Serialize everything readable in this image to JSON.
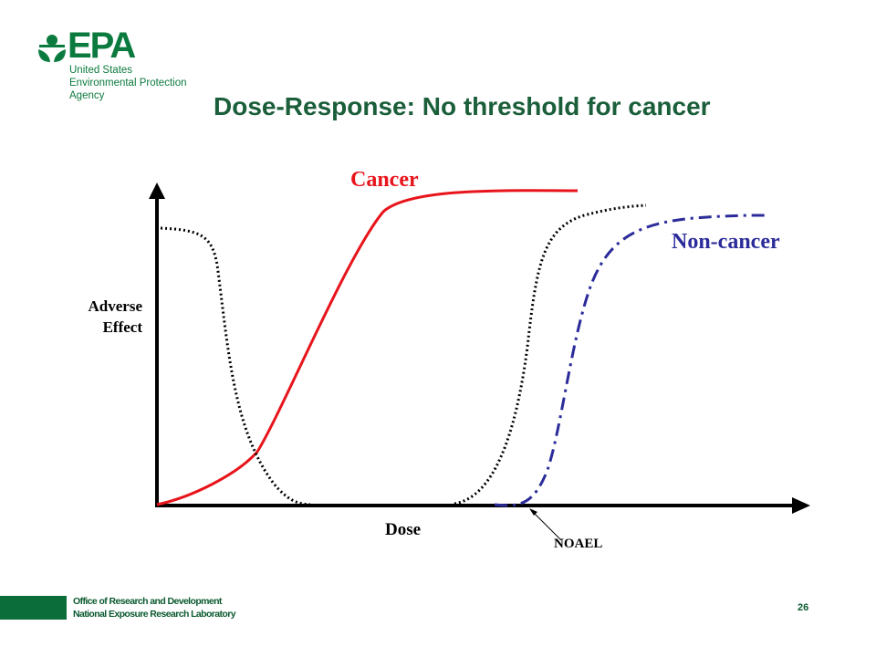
{
  "logo": {
    "word": "EPA",
    "lines": [
      "United States",
      "Environmental Protection",
      "Agency"
    ]
  },
  "title": "Dose-Response: No threshold for cancer",
  "diagram": {
    "y_label_lines": [
      "Adverse",
      "Effect"
    ],
    "x_label": "Dose",
    "curve_labels": {
      "cancer": "Cancer",
      "non_cancer": "Non-cancer"
    },
    "annotation": "NOAEL",
    "colors": {
      "cancer": "#e8141b",
      "non_cancer": "#2b2b9a",
      "dotted": "#000000"
    }
  },
  "footer": {
    "lines": [
      "Office of Research and Development",
      "National Exposure Research Laboratory"
    ],
    "page": "26"
  }
}
